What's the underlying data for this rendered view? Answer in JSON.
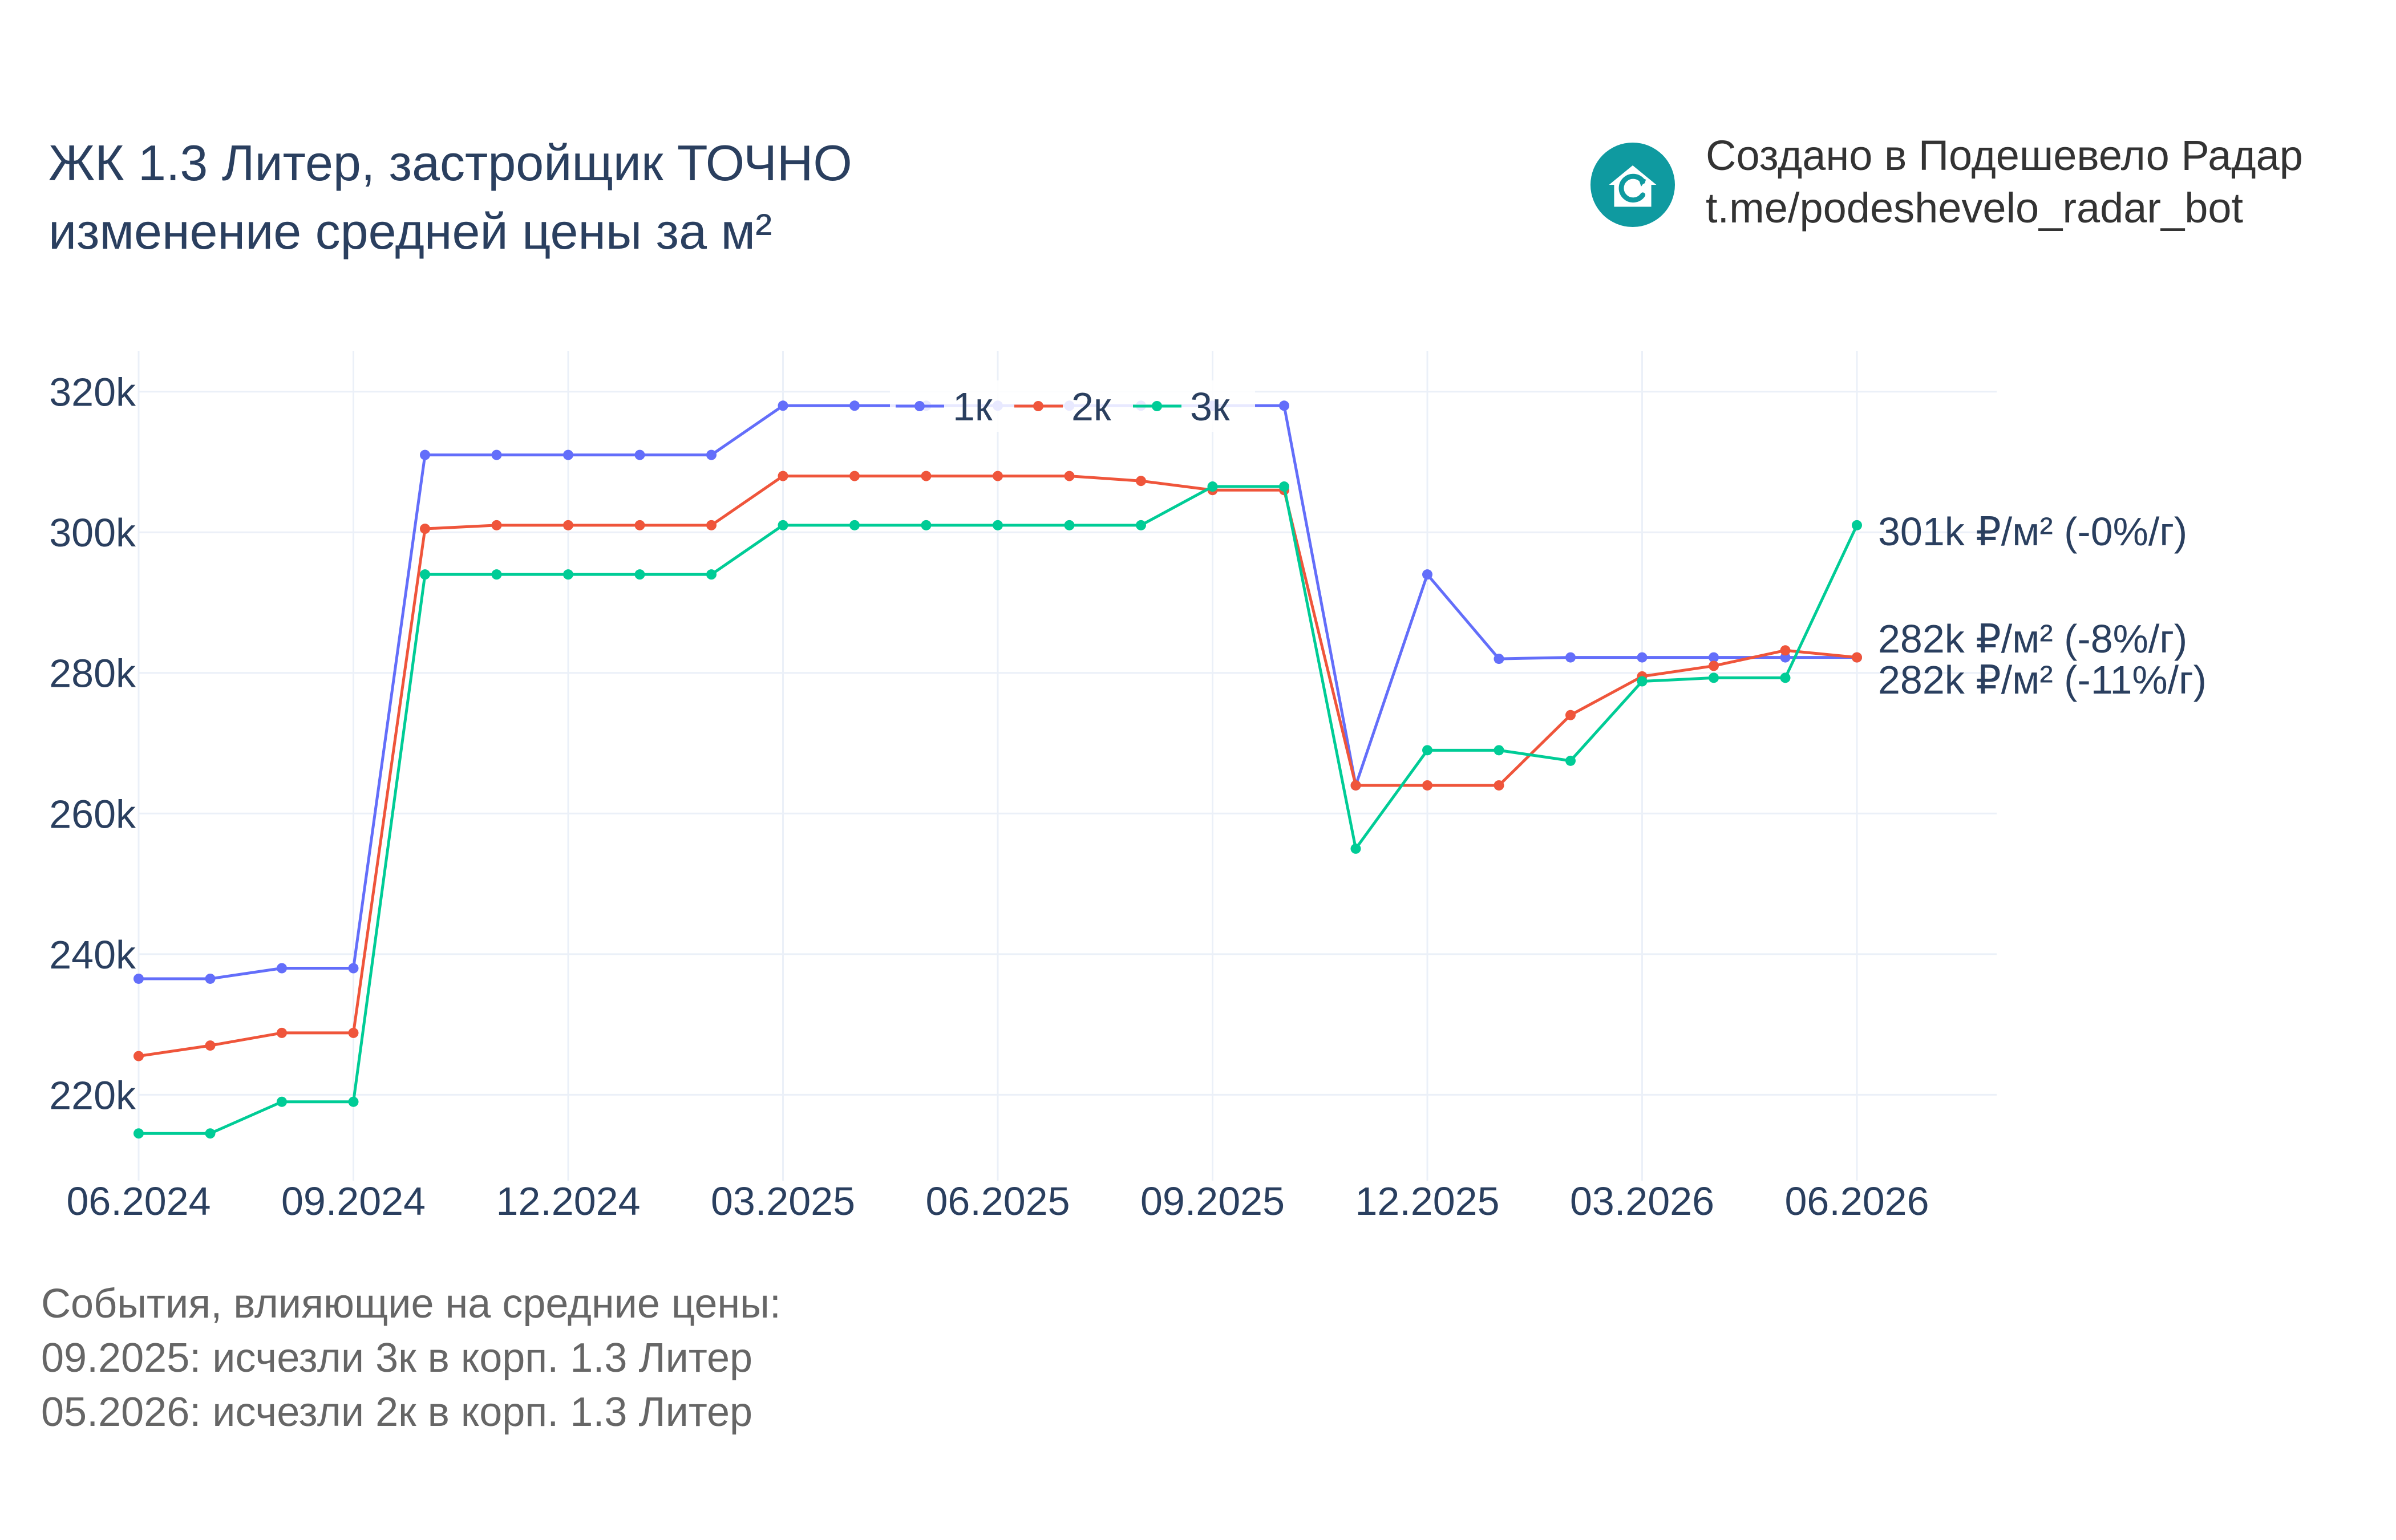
{
  "title": {
    "line1": "ЖК 1.3 Литер, застройщик ТОЧНО",
    "line2": "изменение средней цены за м²"
  },
  "branding": {
    "line1": "Создано в Подешевело Радар",
    "line2": "t.me/podeshevelo_radar_bot",
    "logo_icon": "house-refresh-icon",
    "logo_color": "#0f9aa0"
  },
  "events": {
    "heading": "События, влияющие на средние цены:",
    "items": [
      "09.2025: исчезли 3к в корп. 1.3 Литер",
      "05.2026: исчезли 2к в корп. 1.3 Литер"
    ]
  },
  "chart_data": {
    "type": "line",
    "x": [
      "06.2024",
      "07.2024",
      "08.2024",
      "09.2024",
      "10.2024",
      "11.2024",
      "12.2024",
      "01.2025",
      "02.2025",
      "03.2025",
      "04.2025",
      "05.2025",
      "06.2025",
      "07.2025",
      "08.2025",
      "09.2025",
      "10.2025",
      "11.2025",
      "12.2025",
      "01.2026",
      "02.2026",
      "03.2026",
      "04.2026",
      "05.2026",
      "06.2026"
    ],
    "x_ticks": [
      "06.2024",
      "09.2024",
      "12.2024",
      "03.2025",
      "06.2025",
      "09.2025",
      "12.2025",
      "03.2026",
      "06.2026"
    ],
    "y_ticks": [
      220000,
      240000,
      260000,
      280000,
      300000,
      320000
    ],
    "y_tick_labels": [
      "220k",
      "240k",
      "260k",
      "280k",
      "300k",
      "320k"
    ],
    "ylim": [
      209000,
      325000
    ],
    "grid": true,
    "legend_position": "top-center",
    "series": [
      {
        "name": "1к",
        "color": "#636efa",
        "values": [
          236500,
          236500,
          238000,
          238000,
          311000,
          311000,
          311000,
          311000,
          311000,
          318000,
          318000,
          318000,
          318000,
          318000,
          318000,
          318000,
          318000,
          264000,
          294000,
          282000,
          282200,
          282200,
          282200,
          282200,
          282200
        ]
      },
      {
        "name": "2к",
        "color": "#ef553b",
        "values": [
          225500,
          227000,
          228800,
          228800,
          300500,
          301000,
          301000,
          301000,
          301000,
          308000,
          308000,
          308000,
          308000,
          308000,
          307300,
          306000,
          306000,
          264000,
          264000,
          264000,
          274000,
          279500,
          281000,
          283200,
          282200
        ]
      },
      {
        "name": "3к",
        "color": "#00cc96",
        "values": [
          214500,
          214500,
          219000,
          219000,
          294000,
          294000,
          294000,
          294000,
          294000,
          301000,
          301000,
          301000,
          301000,
          301000,
          301000,
          306500,
          306500,
          255000,
          269000,
          269000,
          267500,
          278800,
          279300,
          279300,
          301000
        ]
      }
    ],
    "end_labels": [
      {
        "series": "3к",
        "text": "301k ₽/м² (-0%/г)"
      },
      {
        "series": "2к",
        "text": "282k ₽/м² (-8%/г)"
      },
      {
        "series": "1к",
        "text": "282k ₽/м² (-11%/г)"
      }
    ]
  }
}
